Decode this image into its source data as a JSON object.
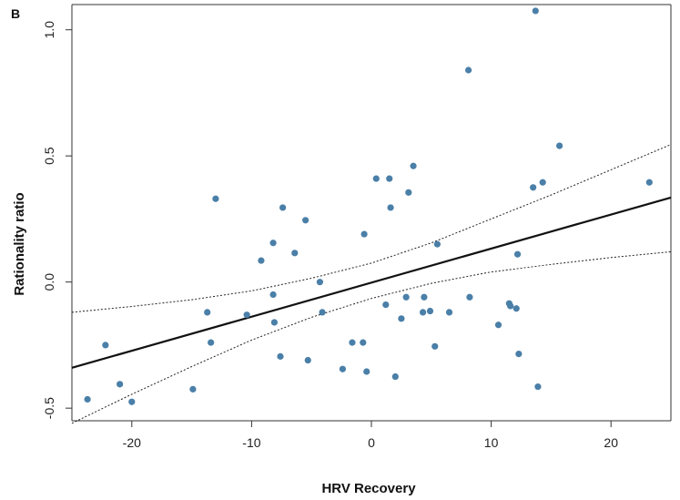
{
  "chart_data": {
    "type": "scatter",
    "panel_label": "B",
    "xlabel": "HRV Recovery",
    "ylabel": "Rationality ratio",
    "xlim": [
      -25,
      25
    ],
    "ylim": [
      -0.55,
      1.1
    ],
    "x_ticks": [
      -20,
      -10,
      0,
      10,
      20
    ],
    "x_tick_labels": [
      "-20",
      "-10",
      "0",
      "10",
      "20"
    ],
    "y_ticks": [
      -0.5,
      0.0,
      0.5,
      1.0
    ],
    "y_tick_labels": [
      "-0.5",
      "0.0",
      "0.5",
      "1.0"
    ],
    "grid": false,
    "point_color": "#4a7fa8",
    "line_color": "#111111",
    "points": [
      {
        "x": -23.7,
        "y": -0.465
      },
      {
        "x": -22.2,
        "y": -0.25
      },
      {
        "x": -21.0,
        "y": -0.405
      },
      {
        "x": -20.0,
        "y": -0.475
      },
      {
        "x": -14.9,
        "y": -0.425
      },
      {
        "x": -13.7,
        "y": -0.12
      },
      {
        "x": -13.4,
        "y": -0.24
      },
      {
        "x": -13.0,
        "y": 0.33
      },
      {
        "x": -10.4,
        "y": -0.13
      },
      {
        "x": -9.2,
        "y": 0.085
      },
      {
        "x": -8.2,
        "y": 0.155
      },
      {
        "x": -8.2,
        "y": -0.05
      },
      {
        "x": -8.1,
        "y": -0.16
      },
      {
        "x": -7.6,
        "y": -0.295
      },
      {
        "x": -7.4,
        "y": 0.295
      },
      {
        "x": -6.4,
        "y": 0.115
      },
      {
        "x": -5.5,
        "y": 0.245
      },
      {
        "x": -5.3,
        "y": -0.31
      },
      {
        "x": -4.3,
        "y": 0.0
      },
      {
        "x": -4.1,
        "y": -0.12
      },
      {
        "x": -2.4,
        "y": -0.345
      },
      {
        "x": -1.6,
        "y": -0.24
      },
      {
        "x": -0.7,
        "y": -0.24
      },
      {
        "x": -0.6,
        "y": 0.19
      },
      {
        "x": -0.4,
        "y": -0.355
      },
      {
        "x": 0.4,
        "y": 0.41
      },
      {
        "x": 1.2,
        "y": -0.09
      },
      {
        "x": 1.5,
        "y": 0.41
      },
      {
        "x": 1.6,
        "y": 0.295
      },
      {
        "x": 2.0,
        "y": -0.375
      },
      {
        "x": 2.5,
        "y": -0.145
      },
      {
        "x": 2.9,
        "y": -0.06
      },
      {
        "x": 3.1,
        "y": 0.355
      },
      {
        "x": 3.5,
        "y": 0.46
      },
      {
        "x": 4.3,
        "y": -0.12
      },
      {
        "x": 4.4,
        "y": -0.06
      },
      {
        "x": 4.9,
        "y": -0.115
      },
      {
        "x": 5.3,
        "y": -0.255
      },
      {
        "x": 5.5,
        "y": 0.15
      },
      {
        "x": 6.5,
        "y": -0.12
      },
      {
        "x": 8.1,
        "y": 0.84
      },
      {
        "x": 8.2,
        "y": -0.06
      },
      {
        "x": 10.6,
        "y": -0.17
      },
      {
        "x": 11.5,
        "y": -0.085
      },
      {
        "x": 11.6,
        "y": -0.095
      },
      {
        "x": 12.1,
        "y": -0.105
      },
      {
        "x": 12.2,
        "y": 0.11
      },
      {
        "x": 12.3,
        "y": -0.285
      },
      {
        "x": 13.5,
        "y": 0.375
      },
      {
        "x": 13.7,
        "y": 1.075
      },
      {
        "x": 13.9,
        "y": -0.415
      },
      {
        "x": 14.3,
        "y": 0.395
      },
      {
        "x": 15.7,
        "y": 0.54
      },
      {
        "x": 23.2,
        "y": 0.395
      }
    ],
    "fit_line": {
      "x": [
        -25,
        25
      ],
      "y": [
        -0.34,
        0.335
      ]
    },
    "ci_upper": {
      "x": [
        -25,
        -20,
        -15,
        -10,
        -5,
        0,
        5,
        10,
        15,
        20,
        25
      ],
      "y": [
        -0.12,
        -0.097,
        -0.07,
        -0.035,
        0.015,
        0.075,
        0.155,
        0.25,
        0.345,
        0.445,
        0.545
      ]
    },
    "ci_lower": {
      "x": [
        -25,
        -20,
        -15,
        -10,
        -5,
        0,
        5,
        10,
        15,
        20,
        25
      ],
      "y": [
        -0.56,
        -0.445,
        -0.335,
        -0.23,
        -0.14,
        -0.065,
        -0.005,
        0.04,
        0.07,
        0.097,
        0.12
      ]
    }
  }
}
